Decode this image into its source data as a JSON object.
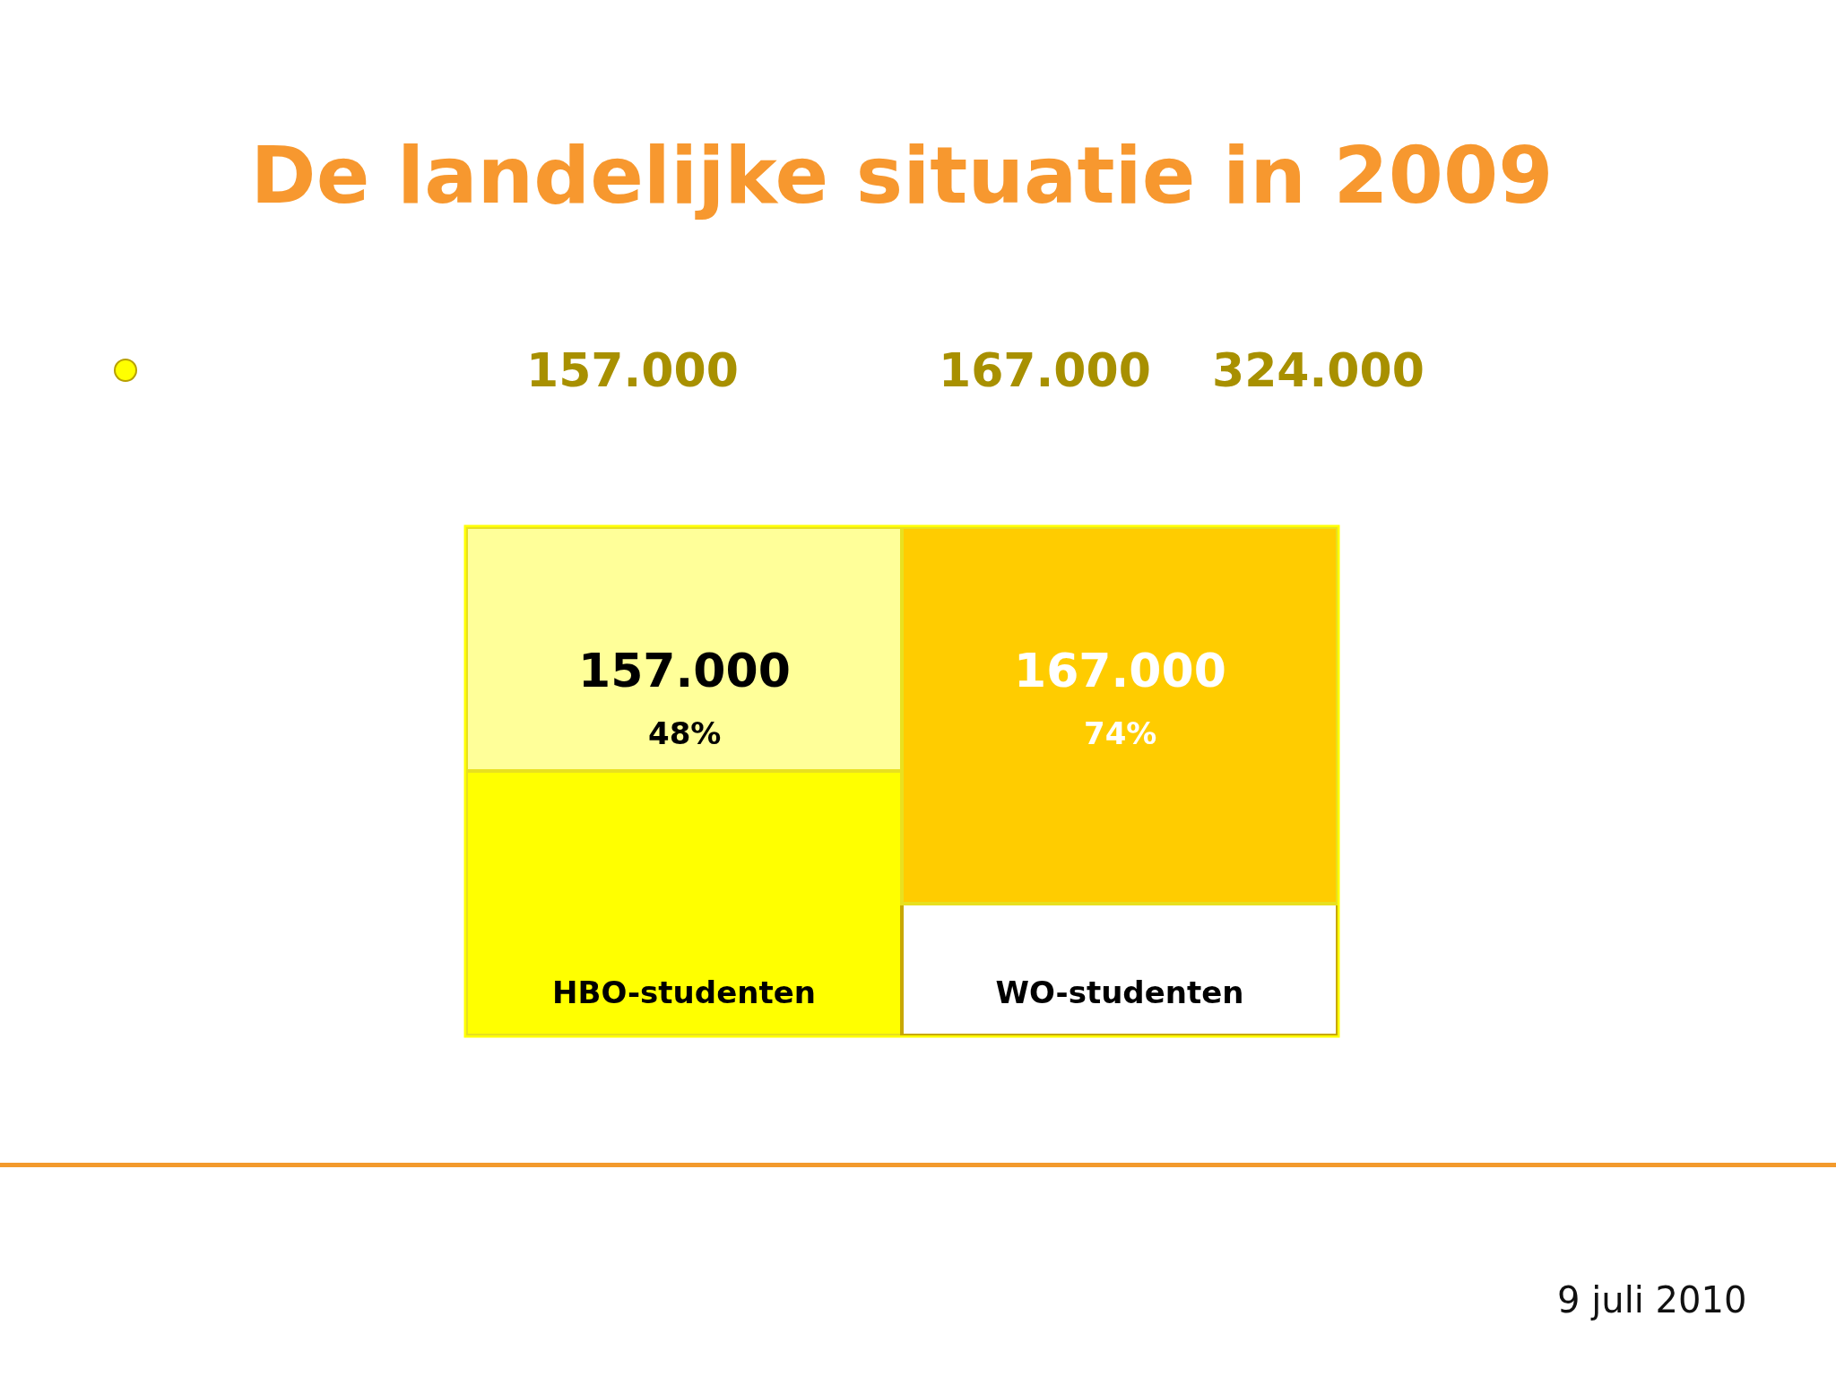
{
  "chart_data": {
    "type": "bar",
    "title": "De landelijke situatie in 2009",
    "categories": [
      "HBO-studenten",
      "WO-studenten"
    ],
    "series": [
      {
        "values": [
          52,
          26
        ],
        "colors": [
          "#ffff00",
          "#ffffff"
        ]
      },
      {
        "values": [
          48,
          74
        ],
        "colors": [
          "#ffff99",
          "#ffcc00"
        ],
        "value_labels": [
          "48%",
          "74%"
        ]
      }
    ],
    "stacked": true,
    "ylim": [
      0,
      100
    ],
    "tick_labels": "x",
    "annotations": [
      "157.000",
      "167.000",
      "324.000",
      "9 juli 2010",
      "157.000",
      "167.000"
    ]
  }
}
